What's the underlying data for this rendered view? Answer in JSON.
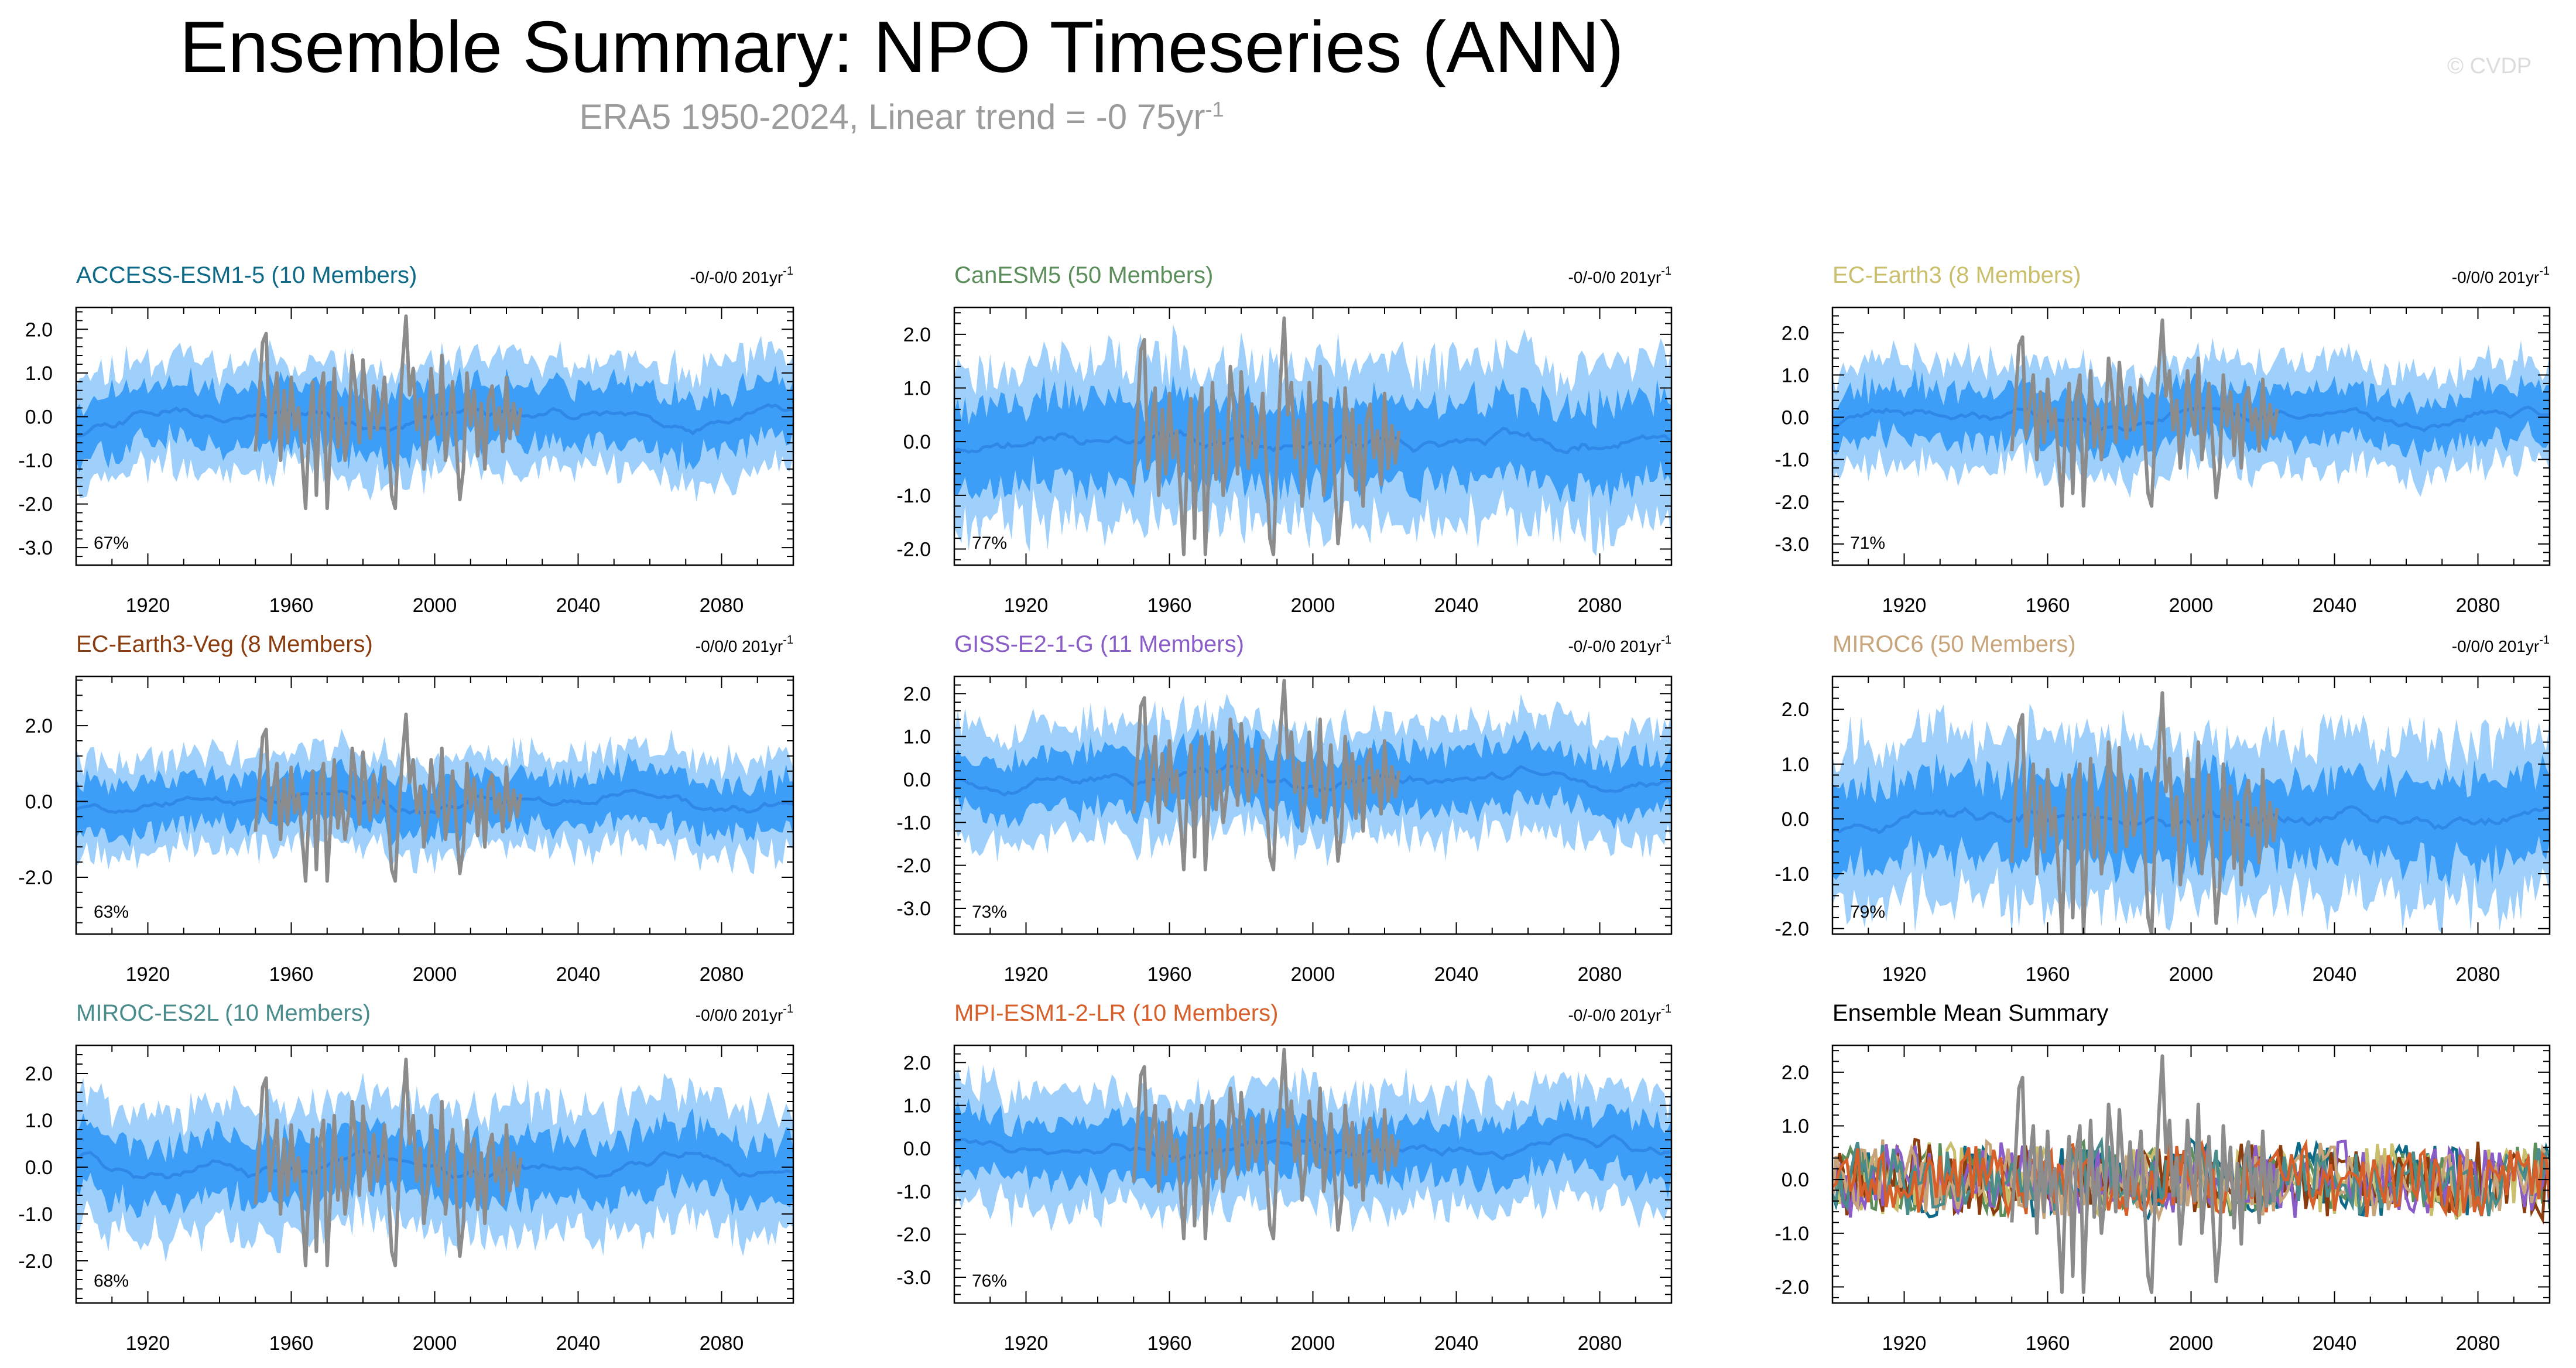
{
  "title": "Ensemble Summary: NPO Timeseries (ANN)",
  "subtitle": {
    "text": "ERA5 1950-2024, Linear trend = -0 75yr",
    "sup": "-1"
  },
  "watermark": "© CVDP",
  "colors": {
    "spread_outer": "#9fd0fb",
    "spread_inner": "#3d9ef7",
    "ensemble_mean_line": "#2f87e8",
    "observations_line": "#8c8c8c"
  },
  "chart_data": [
    {
      "type": "area",
      "title": "ACCESS-ESM1-5 (10 Members)",
      "title_color": "#0e6a86",
      "trend": "-0/-0/0 201yr",
      "trend_sup": "-1",
      "percent": "67%",
      "xlim": [
        1900,
        2100
      ],
      "ylim": [
        -3.4,
        2.5
      ],
      "xticks": [
        "1920",
        "1960",
        "2000",
        "2040",
        "2080"
      ],
      "yticks": [
        "2.0",
        "1.0",
        "0.0",
        "-1.0",
        "-2.0",
        "-3.0"
      ],
      "outer_width": 1.2,
      "inner_width": 0.65,
      "mean_amp": 0.28,
      "seed": 11
    },
    {
      "type": "area",
      "title": "CanESM5 (50 Members)",
      "title_color": "#5c8e5c",
      "trend": "-0/-0/0 201yr",
      "trend_sup": "-1",
      "percent": "77%",
      "xlim": [
        1900,
        2100
      ],
      "ylim": [
        -2.3,
        2.5
      ],
      "xticks": [
        "1920",
        "1960",
        "2000",
        "2040",
        "2080"
      ],
      "yticks": [
        "2.0",
        "1.0",
        "0.0",
        "-1.0",
        "-2.0"
      ],
      "outer_width": 1.45,
      "inner_width": 0.75,
      "mean_amp": 0.12,
      "seed": 23
    },
    {
      "type": "area",
      "title": "EC-Earth3 (8 Members)",
      "title_color": "#c9bf6c",
      "trend": "-0/0/0 201yr",
      "trend_sup": "-1",
      "percent": "71%",
      "xlim": [
        1900,
        2100
      ],
      "ylim": [
        -3.5,
        2.6
      ],
      "xticks": [
        "1920",
        "1960",
        "2000",
        "2040",
        "2080"
      ],
      "yticks": [
        "2.0",
        "1.0",
        "0.0",
        "-1.0",
        "-2.0",
        "-3.0"
      ],
      "outer_width": 1.2,
      "inner_width": 0.6,
      "mean_amp": 0.25,
      "seed": 37
    },
    {
      "type": "area",
      "title": "EC-Earth3-Veg (8 Members)",
      "title_color": "#8a3c0e",
      "trend": "-0/0/0 201yr",
      "trend_sup": "-1",
      "percent": "63%",
      "xlim": [
        1900,
        2100
      ],
      "ylim": [
        -3.5,
        3.3
      ],
      "xticks": [
        "1920",
        "1960",
        "2000",
        "2040",
        "2080"
      ],
      "yticks": [
        "2.0",
        "0.0",
        "-2.0"
      ],
      "outer_width": 1.2,
      "inner_width": 0.65,
      "mean_amp": 0.28,
      "seed": 41
    },
    {
      "type": "area",
      "title": "GISS-E2-1-G (11 Members)",
      "title_color": "#8a5cc8",
      "trend": "-0/-0/0 201yr",
      "trend_sup": "-1",
      "percent": "73%",
      "xlim": [
        1900,
        2100
      ],
      "ylim": [
        -3.6,
        2.4
      ],
      "xticks": [
        "1920",
        "1960",
        "2000",
        "2040",
        "2080"
      ],
      "yticks": [
        "2.0",
        "1.0",
        "0.0",
        "-1.0",
        "-2.0",
        "-3.0"
      ],
      "outer_width": 1.3,
      "inner_width": 0.65,
      "mean_amp": 0.25,
      "seed": 53
    },
    {
      "type": "area",
      "title": "MIROC6 (50 Members)",
      "title_color": "#c8a47a",
      "trend": "-0/0/0 201yr",
      "trend_sup": "-1",
      "percent": "79%",
      "xlim": [
        1900,
        2100
      ],
      "ylim": [
        -2.1,
        2.6
      ],
      "xticks": [
        "1920",
        "1960",
        "2000",
        "2040",
        "2080"
      ],
      "yticks": [
        "2.0",
        "1.0",
        "0.0",
        "-1.0",
        "-2.0"
      ],
      "outer_width": 1.45,
      "inner_width": 0.75,
      "mean_amp": 0.1,
      "seed": 67
    },
    {
      "type": "area",
      "title": "MIROC-ES2L (10 Members)",
      "title_color": "#4a8c8c",
      "trend": "-0/0/0 201yr",
      "trend_sup": "-1",
      "percent": "68%",
      "xlim": [
        1900,
        2100
      ],
      "ylim": [
        -2.9,
        2.6
      ],
      "xticks": [
        "1920",
        "1960",
        "2000",
        "2040",
        "2080"
      ],
      "yticks": [
        "2.0",
        "1.0",
        "0.0",
        "-1.0",
        "-2.0"
      ],
      "outer_width": 1.3,
      "inner_width": 0.65,
      "mean_amp": 0.26,
      "seed": 71
    },
    {
      "type": "area",
      "title": "MPI-ESM1-2-LR (10 Members)",
      "title_color": "#d65f2a",
      "trend": "-0/-0/0 201yr",
      "trend_sup": "-1",
      "percent": "76%",
      "xlim": [
        1900,
        2100
      ],
      "ylim": [
        -3.6,
        2.4
      ],
      "xticks": [
        "1920",
        "1960",
        "2000",
        "2040",
        "2080"
      ],
      "yticks": [
        "2.0",
        "1.0",
        "0.0",
        "-1.0",
        "-2.0",
        "-3.0"
      ],
      "outer_width": 1.3,
      "inner_width": 0.65,
      "mean_amp": 0.25,
      "seed": 83
    },
    {
      "type": "line",
      "title": "Ensemble Mean Summary",
      "title_color": "#000000",
      "trend": "",
      "trend_sup": "",
      "percent": "",
      "xlim": [
        1900,
        2100
      ],
      "ylim": [
        -2.3,
        2.5
      ],
      "xticks": [
        "1920",
        "1960",
        "2000",
        "2040",
        "2080"
      ],
      "yticks": [
        "2.0",
        "1.0",
        "0.0",
        "-1.0",
        "-2.0"
      ],
      "series_colors": [
        "#0e6a86",
        "#5c8e5c",
        "#c9bf6c",
        "#8a3c0e",
        "#8a5cc8",
        "#c8a47a",
        "#4a8c8c",
        "#d65f2a"
      ],
      "seed": 97
    }
  ],
  "observations": {
    "name": "ERA5",
    "x": [
      1950,
      1951,
      1952,
      1953,
      1954,
      1955,
      1956,
      1957,
      1958,
      1959,
      1960,
      1961,
      1962,
      1963,
      1964,
      1965,
      1966,
      1967,
      1968,
      1969,
      1970,
      1971,
      1972,
      1973,
      1974,
      1975,
      1976,
      1977,
      1978,
      1979,
      1980,
      1981,
      1982,
      1983,
      1984,
      1985,
      1986,
      1987,
      1988,
      1989,
      1990,
      1991,
      1992,
      1993,
      1994,
      1995,
      1996,
      1997,
      1998,
      1999,
      2000,
      2001,
      2002,
      2003,
      2004,
      2005,
      2006,
      2007,
      2008,
      2009,
      2010,
      2011,
      2012,
      2013,
      2014,
      2015,
      2016,
      2017,
      2018,
      2019,
      2020,
      2021,
      2022,
      2023,
      2024
    ],
    "y": [
      -0.8,
      0.4,
      1.7,
      1.9,
      -0.5,
      0.3,
      1.0,
      -1.0,
      0.6,
      -0.6,
      0.9,
      -0.3,
      0.2,
      -0.9,
      -2.1,
      -0.2,
      0.8,
      -1.8,
      0.5,
      1.0,
      -2.1,
      -0.5,
      1.1,
      -0.7,
      0.2,
      -1.0,
      -0.3,
      1.4,
      0.6,
      -0.6,
      1.3,
      0.3,
      -0.5,
      0.7,
      -0.3,
      0.1,
      0.9,
      -0.4,
      -1.8,
      -2.1,
      -0.3,
      1.2,
      2.3,
      0.5,
      1.1,
      -0.3,
      0.4,
      -1.2,
      -0.4,
      1.1,
      0.1,
      -0.4,
      1.4,
      -1.0,
      -0.2,
      0.8,
      -0.6,
      -1.9,
      -1.2,
      1.0,
      -0.2,
      0.6,
      -0.9,
      0.3,
      -1.2,
      0.4,
      0.7,
      -0.3,
      0.2,
      -0.8,
      0.9,
      -0.5,
      0.3,
      -0.4,
      0.2
    ]
  }
}
